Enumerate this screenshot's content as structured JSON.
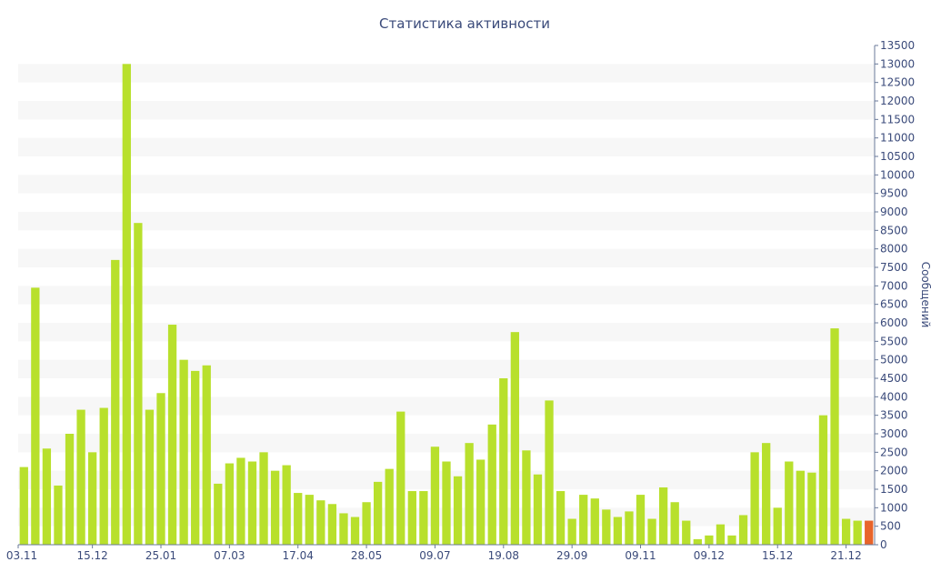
{
  "chart_data": {
    "type": "bar",
    "title": "Статистика активности",
    "xlabel": "",
    "ylabel": "Сообщений",
    "ylim": [
      0,
      13500
    ],
    "y_axis_position": "right",
    "y_ticks": [
      0,
      500,
      1000,
      1500,
      2000,
      2500,
      3000,
      3500,
      4000,
      4500,
      5000,
      5500,
      6000,
      6500,
      7000,
      7500,
      8000,
      8500,
      9000,
      9500,
      10000,
      10500,
      11000,
      11500,
      12000,
      12500,
      13000,
      13500
    ],
    "x_tick_labels": [
      "03.11",
      "15.12",
      "25.01",
      "07.03",
      "17.04",
      "28.05",
      "09.07",
      "19.08",
      "29.09",
      "09.11",
      "09.12",
      "15.12",
      "21.12"
    ],
    "x_tick_bar_index": [
      0,
      6,
      12,
      18,
      24,
      30,
      36,
      42,
      48,
      54,
      60,
      66,
      72
    ],
    "grid": "horizontal bands",
    "colors": {
      "bar": "#b8e02c",
      "bar_current": "#e8642a",
      "band": "#f7f7f7",
      "text": "#3a4a7a",
      "axis": "#6a7a9a"
    },
    "values": [
      2100,
      6950,
      2600,
      1600,
      3000,
      3650,
      2500,
      3700,
      7700,
      13000,
      8700,
      3650,
      4100,
      5950,
      5000,
      4700,
      4850,
      1650,
      2200,
      2350,
      2250,
      2500,
      2000,
      2150,
      1400,
      1350,
      1200,
      1100,
      850,
      750,
      1150,
      1700,
      2050,
      3600,
      1450,
      1450,
      2650,
      2250,
      1850,
      2750,
      2300,
      3250,
      4500,
      5750,
      2550,
      1900,
      3900,
      1450,
      700,
      1350,
      1250,
      950,
      750,
      900,
      1350,
      700,
      1550,
      1150,
      650,
      150,
      250,
      550,
      250,
      800,
      2500,
      2750,
      1000,
      2250,
      2000,
      1950,
      3500,
      5850,
      700,
      650,
      650
    ],
    "highlight_last": true
  }
}
